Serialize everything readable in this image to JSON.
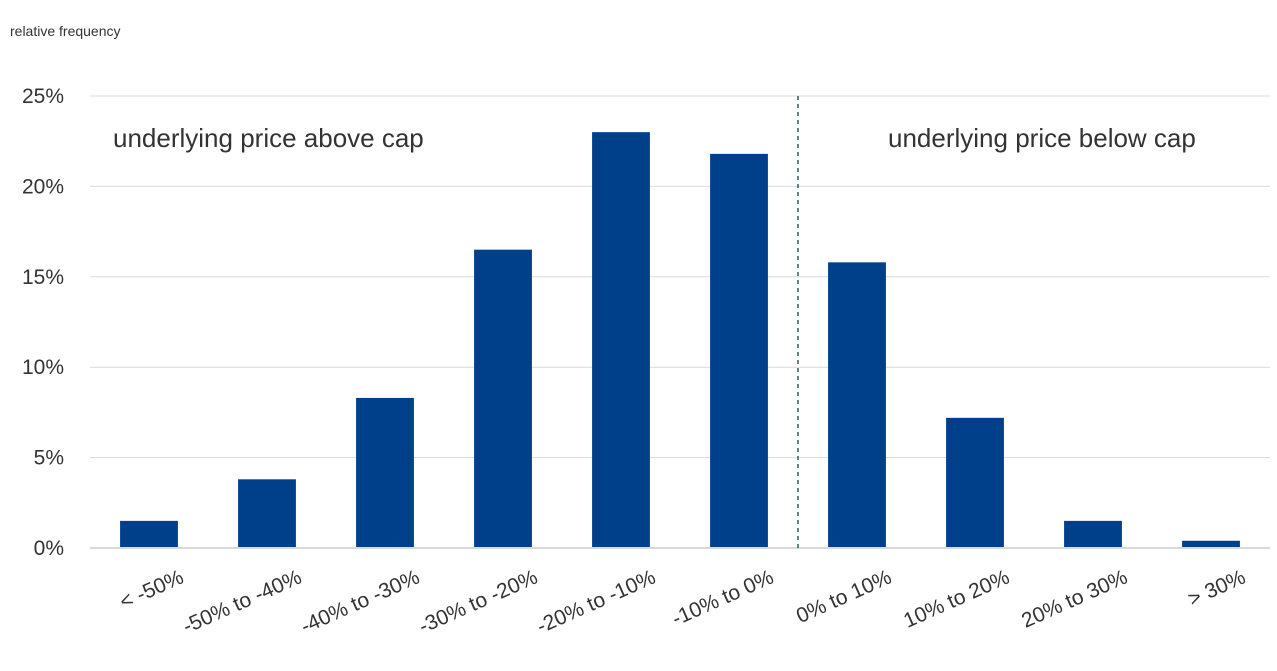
{
  "chart_data": {
    "type": "bar",
    "ylabel": "relative frequency",
    "ylim": [
      0,
      25
    ],
    "yticks": [
      0,
      5,
      10,
      15,
      20,
      25
    ],
    "ytick_labels": [
      "0%",
      "5%",
      "10%",
      "15%",
      "20%",
      "25%"
    ],
    "grid": true,
    "categories": [
      "< -50%",
      "-50% to -40%",
      "-40% to -30%",
      "-30% to -20%",
      "-20% to -10%",
      "-10% to 0%",
      "0% to 10%",
      "10% to 20%",
      "20% to 30%",
      "> 30%"
    ],
    "values": [
      1.5,
      3.8,
      8.3,
      16.5,
      23.0,
      21.8,
      15.8,
      7.2,
      1.5,
      0.4
    ],
    "bar_color": "#00408a",
    "divider_color": "#2f5d62",
    "annotations": {
      "left": "underlying  price above cap",
      "right": "underlying  price below cap"
    }
  }
}
